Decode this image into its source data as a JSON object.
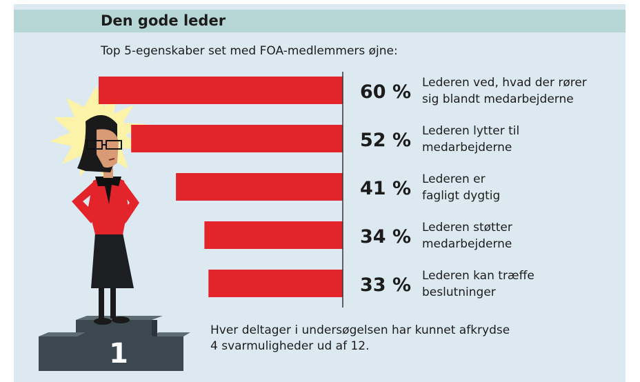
{
  "title": "Den gode leder",
  "subtitle": "Top 5-egenskaber set med FOA-medlemmers øjne:",
  "podium_label": "1",
  "note_lines": [
    "Hver deltager i undersøgelsen har kunnet afkrydse",
    "4 svarmuligheder ud af 12."
  ],
  "colors": {
    "bar": "#e3242b",
    "background": "#dce9f1",
    "header_band": "#b7d7d6",
    "text": "#1c1c1c"
  },
  "chart_data": {
    "type": "bar",
    "orientation": "horizontal",
    "unit": "%",
    "xlim": [
      0,
      100
    ],
    "grid": false,
    "categories": [
      [
        "Lederen ved, hvad der rører",
        "sig blandt medarbejderne"
      ],
      [
        "Lederen lytter til",
        "medarbejderne"
      ],
      [
        "Lederen er",
        "fagligt dygtig"
      ],
      [
        "Lederen støtter",
        "medarbejderne"
      ],
      [
        "Lederen kan træffe",
        "beslutninger"
      ]
    ],
    "values": [
      60,
      52,
      41,
      34,
      33
    ],
    "value_labels": [
      "60 %",
      "52 %",
      "41 %",
      "34 %",
      "33 %"
    ]
  }
}
